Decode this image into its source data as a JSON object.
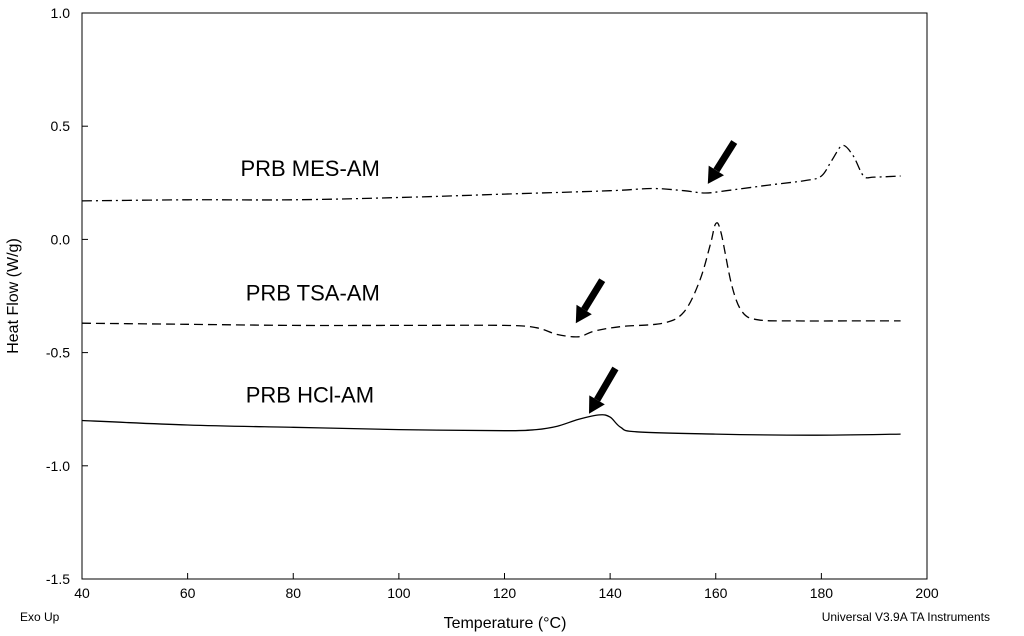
{
  "chart_data": {
    "type": "line",
    "title": "",
    "xlabel": "Temperature (°C)",
    "ylabel": "Heat Flow (W/g)",
    "xlim": [
      40,
      200
    ],
    "ylim": [
      -1.5,
      1.0
    ],
    "x_ticks": [
      "40",
      "60",
      "80",
      "100",
      "120",
      "140",
      "160",
      "180",
      "200"
    ],
    "y_ticks": [
      "-1.5",
      "-1.0",
      "-0.5",
      "0.0",
      "0.5",
      "1.0"
    ],
    "grid": false,
    "series": [
      {
        "name": "PRB MES-AM",
        "style": "dash-dot",
        "points": [
          [
            40,
            0.17
          ],
          [
            60,
            0.175
          ],
          [
            80,
            0.175
          ],
          [
            100,
            0.185
          ],
          [
            120,
            0.2
          ],
          [
            140,
            0.215
          ],
          [
            148,
            0.225
          ],
          [
            154,
            0.215
          ],
          [
            158,
            0.205
          ],
          [
            162,
            0.215
          ],
          [
            170,
            0.24
          ],
          [
            177,
            0.26
          ],
          [
            180,
            0.28
          ],
          [
            182,
            0.35
          ],
          [
            184,
            0.415
          ],
          [
            186,
            0.37
          ],
          [
            188,
            0.28
          ],
          [
            190,
            0.275
          ],
          [
            195,
            0.28
          ]
        ]
      },
      {
        "name": "PRB TSA-AM",
        "style": "dashed",
        "points": [
          [
            40,
            -0.37
          ],
          [
            60,
            -0.375
          ],
          [
            80,
            -0.38
          ],
          [
            100,
            -0.38
          ],
          [
            120,
            -0.38
          ],
          [
            126,
            -0.39
          ],
          [
            130,
            -0.42
          ],
          [
            134,
            -0.43
          ],
          [
            137,
            -0.405
          ],
          [
            142,
            -0.385
          ],
          [
            150,
            -0.37
          ],
          [
            154,
            -0.32
          ],
          [
            157,
            -0.18
          ],
          [
            159,
            -0.02
          ],
          [
            160,
            0.07
          ],
          [
            161,
            0.03
          ],
          [
            163,
            -0.2
          ],
          [
            165,
            -0.32
          ],
          [
            168,
            -0.355
          ],
          [
            175,
            -0.36
          ],
          [
            185,
            -0.36
          ],
          [
            195,
            -0.36
          ]
        ]
      },
      {
        "name": "PRB HCl-AM",
        "style": "solid",
        "points": [
          [
            40,
            -0.8
          ],
          [
            60,
            -0.82
          ],
          [
            80,
            -0.83
          ],
          [
            100,
            -0.84
          ],
          [
            120,
            -0.845
          ],
          [
            126,
            -0.84
          ],
          [
            130,
            -0.825
          ],
          [
            134,
            -0.795
          ],
          [
            138,
            -0.775
          ],
          [
            140,
            -0.785
          ],
          [
            142,
            -0.83
          ],
          [
            145,
            -0.85
          ],
          [
            160,
            -0.86
          ],
          [
            178,
            -0.865
          ],
          [
            195,
            -0.86
          ]
        ]
      }
    ],
    "labels": [
      {
        "text": "PRB MES-AM",
        "x": 70,
        "y": 0.28
      },
      {
        "text": "PRB TSA-AM",
        "x": 71,
        "y": -0.27
      },
      {
        "text": "PRB HCl-AM",
        "x": 71,
        "y": -0.72
      }
    ],
    "arrows": [
      {
        "from": [
          163.5,
          0.43
        ],
        "to": [
          158.5,
          0.245
        ]
      },
      {
        "from": [
          138.5,
          -0.18
        ],
        "to": [
          133.5,
          -0.37
        ]
      },
      {
        "from": [
          141,
          -0.57
        ],
        "to": [
          136,
          -0.77
        ]
      }
    ]
  },
  "footer": {
    "left": "Exo Up",
    "right": "Universal V3.9A TA Instruments"
  }
}
